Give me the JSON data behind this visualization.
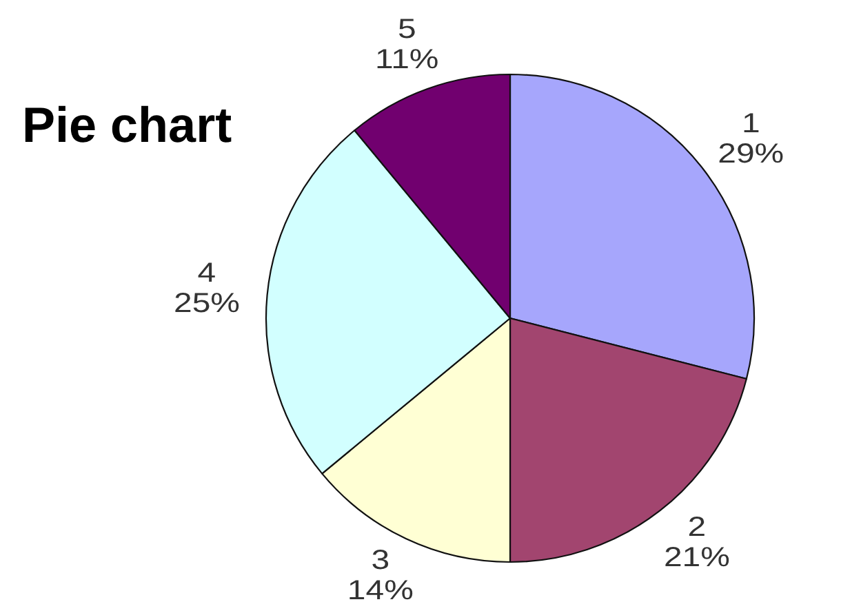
{
  "chart_data": {
    "type": "pie",
    "title": "Pie chart",
    "categories": [
      "1",
      "2",
      "3",
      "4",
      "5"
    ],
    "values": [
      29,
      21,
      14,
      25,
      11
    ],
    "colors": [
      "#a6a6fc",
      "#a2456f",
      "#ffffd4",
      "#d2ffff",
      "#71006f"
    ],
    "value_labels": [
      "29%",
      "21%",
      "14%",
      "25%",
      "11%"
    ]
  }
}
